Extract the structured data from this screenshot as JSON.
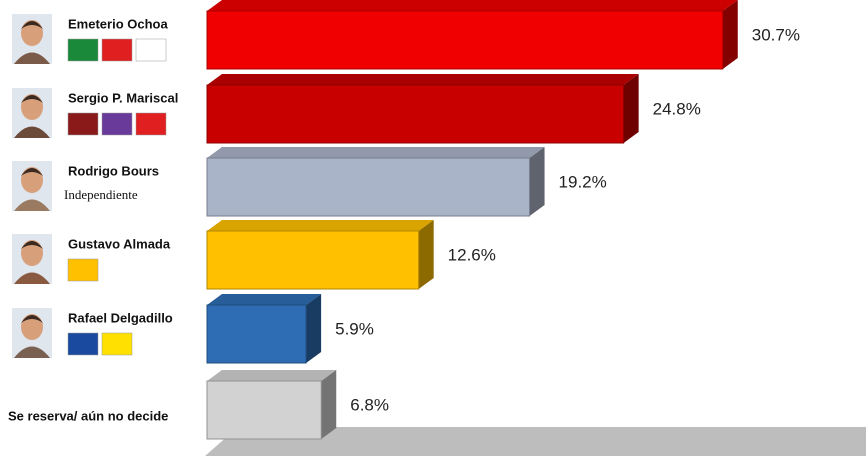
{
  "chart_data": {
    "type": "bar",
    "orientation": "horizontal",
    "categories": [
      "Emeterio Ochoa",
      "Sergio P. Mariscal",
      "Rodrigo Bours",
      "Gustavo Almada",
      "Rafael Delgadillo",
      "Se reserva/ aún no decide"
    ],
    "subtitles": [
      null,
      null,
      "Independiente",
      null,
      null,
      null
    ],
    "values": [
      30.7,
      24.8,
      19.2,
      12.6,
      5.9,
      6.8
    ],
    "value_labels": [
      "30.7%",
      "24.8%",
      "19.2%",
      "12.6%",
      "5.9%",
      "6.8%"
    ],
    "colors": [
      "#f00000",
      "#c80000",
      "#aab4c8",
      "#ffc000",
      "#2e6db4",
      "#d2d2d2"
    ]
  }
}
